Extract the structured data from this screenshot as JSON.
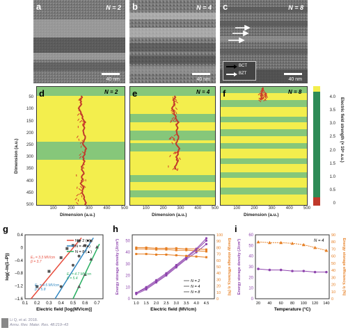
{
  "top_panels": [
    {
      "letter": "a",
      "n_label": "N = 2",
      "scale": "40 nm"
    },
    {
      "letter": "b",
      "n_label": "N = 4",
      "scale": "40 nm"
    },
    {
      "letter": "c",
      "n_label": "N = 8",
      "scale": "40 nm",
      "legend": [
        "BCT",
        "BZT"
      ]
    }
  ],
  "sim_panels": [
    {
      "letter": "d",
      "n_label": "N = 2"
    },
    {
      "letter": "e",
      "n_label": "N = 4"
    },
    {
      "letter": "f",
      "n_label": "N = 8"
    }
  ],
  "sim_axes": {
    "ylabel": "Dimension (a.u.)",
    "xlabel": "Dimension (a.u.)",
    "yticks": [
      "50",
      "100",
      "150",
      "200",
      "250",
      "300",
      "350",
      "400",
      "450",
      "500"
    ],
    "xticks_d": [
      "0",
      "100",
      "200",
      "300",
      "400",
      "500"
    ],
    "xticks_e": [
      "100",
      "200",
      "300",
      "400",
      "500"
    ],
    "xticks_f": [
      "100",
      "200",
      "300",
      "400",
      "500"
    ]
  },
  "colorbar": {
    "label": "Electric field strength (× 10⁸ a.u.)",
    "ticks": [
      "0",
      "0.5",
      "1.0",
      "1.5",
      "2.0",
      "2.5",
      "3.0",
      "3.5",
      "4.0"
    ],
    "colors": {
      "low": "#c0392b",
      "mid": "#2e8b57",
      "high": "#7ec87e",
      "top": "#f3ee4d"
    }
  },
  "panel_g": {
    "letter": "g",
    "ylabel": "log(–ln(1–P))",
    "xlabel": "Electric field [log(MV/cm)]",
    "yticks": [
      "0.4",
      "0",
      "–0.4",
      "–0.8",
      "–1.2",
      "–1.6"
    ],
    "xticks": [
      "0.1",
      "0.2",
      "0.3",
      "0.4",
      "0.5",
      "0.6",
      "0.7"
    ],
    "legend": [
      "N = 2 (■)",
      "N = 4 (●)",
      "N = 8 (▲)"
    ],
    "annotations": [
      "E₀ = 3.3 MV/cm",
      "β = 3.7",
      "E₀ = 4.5 MV/cm",
      "β = 5.8",
      "E₀ = 4.7 MV/cm",
      "β = 5.4"
    ]
  },
  "panel_h": {
    "letter": "h",
    "ylabel_left": "Energy storage density (J/cm³)",
    "ylabel_right": "Energy storage efficiency, η (%)",
    "xlabel": "Electric field (MV/cm)",
    "yticks_left": [
      "0",
      "10",
      "20",
      "30",
      "40",
      "50"
    ],
    "yticks_right": [
      "0",
      "10",
      "20",
      "30",
      "40",
      "50",
      "60",
      "70",
      "80",
      "90",
      "100"
    ],
    "xticks": [
      "1.0",
      "1.5",
      "2.0",
      "2.5",
      "3.0",
      "3.5",
      "4.0",
      "4.5"
    ],
    "legend": [
      "N = 2",
      "N = 4",
      "N = 8"
    ]
  },
  "panel_i": {
    "letter": "i",
    "n_label": "N = 4",
    "ylabel_left": "Energy storage density (J/cm³)",
    "ylabel_right": "Energy storage efficiency, η (%)",
    "xlabel": "Temperature (°C)",
    "yticks_left": [
      "0",
      "10",
      "20",
      "30",
      "40",
      "50",
      "60"
    ],
    "yticks_right": [
      "0",
      "10",
      "20",
      "30",
      "40",
      "50",
      "60",
      "70",
      "80",
      "90"
    ],
    "xticks": [
      "20",
      "40",
      "60",
      "80",
      "100",
      "120",
      "140"
    ]
  },
  "citation": [
    "Li Q, et al. 2018.",
    "Annu. Rev. Mater. Res. 48:219–43"
  ],
  "chart_data": [
    {
      "type": "scatter",
      "panel": "g",
      "series": [
        {
          "name": "N = 2",
          "x": [
            0.2,
            0.3,
            0.4,
            0.45,
            0.5,
            0.55
          ],
          "y": [
            -1.2,
            -0.7,
            -0.25,
            0.05,
            0.15,
            0.3
          ]
        },
        {
          "name": "N = 4",
          "x": [
            0.4,
            0.5,
            0.55,
            0.6,
            0.65
          ],
          "y": [
            -1.2,
            -0.5,
            -0.2,
            0.15,
            0.3
          ]
        },
        {
          "name": "N = 8",
          "x": [
            0.55,
            0.6,
            0.65,
            0.7
          ],
          "y": [
            -1.2,
            -0.8,
            -0.3,
            0.1
          ]
        }
      ],
      "xlim": [
        0.1,
        0.75
      ],
      "ylim": [
        -1.6,
        0.5
      ]
    },
    {
      "type": "line",
      "panel": "h",
      "x": [
        1.0,
        1.5,
        2.0,
        2.5,
        3.0,
        3.5,
        4.0,
        4.5
      ],
      "series": [
        {
          "name": "N = 2",
          "density": [
            4,
            8,
            14,
            20,
            27,
            34,
            40,
            47
          ],
          "efficiency": [
            78,
            78,
            77,
            77,
            76,
            76,
            75,
            74
          ]
        },
        {
          "name": "N = 4",
          "density": [
            5,
            9,
            15,
            21,
            28,
            35,
            42,
            50
          ],
          "efficiency": [
            80,
            80,
            79,
            79,
            79,
            78,
            78,
            77
          ]
        },
        {
          "name": "N = 8",
          "density": [
            5,
            10,
            16,
            22,
            29,
            36,
            43,
            52
          ],
          "efficiency": [
            70,
            70,
            69,
            69,
            68,
            67,
            66,
            65
          ]
        }
      ]
    },
    {
      "type": "line",
      "panel": "i",
      "x": [
        20,
        40,
        60,
        80,
        100,
        120,
        140
      ],
      "series": [
        {
          "name": "Energy storage density",
          "values": [
            28,
            27,
            27,
            26,
            26,
            25,
            25
          ]
        },
        {
          "name": "Energy storage efficiency",
          "values": [
            80,
            79,
            79,
            78,
            76,
            72,
            68
          ]
        }
      ]
    }
  ]
}
